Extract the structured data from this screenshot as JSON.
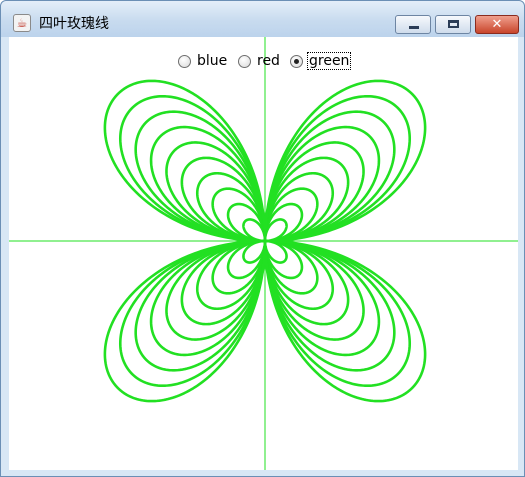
{
  "window": {
    "title": "四叶玫瑰线"
  },
  "color_options": [
    {
      "label": "blue",
      "checked": false
    },
    {
      "label": "red",
      "checked": false
    },
    {
      "label": "green",
      "checked": true
    }
  ],
  "colors": {
    "curve": "#22e022",
    "axes": "#22e022",
    "background": "#ffffff"
  },
  "icons": [
    "java-app-icon",
    "minimize-icon",
    "maximize-icon",
    "close-icon"
  ]
}
